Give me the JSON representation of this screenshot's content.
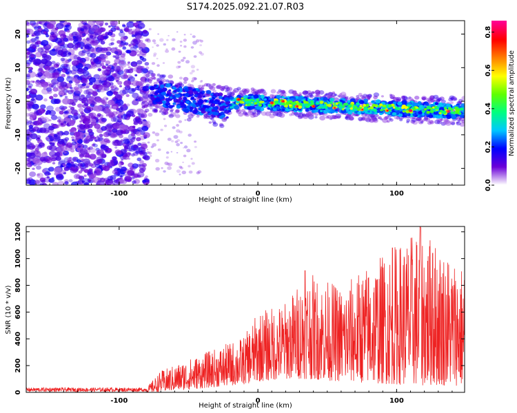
{
  "title": "S174.2025.092.21.07.R03",
  "chart_data": [
    {
      "type": "heatmap",
      "xlabel": "Height of straight line (km)",
      "ylabel": "Frequency (Hz)",
      "xlim": [
        -167,
        149
      ],
      "ylim": [
        -25,
        24
      ],
      "xticks": [
        -100,
        0,
        100
      ],
      "yticks": [
        -20,
        -10,
        0,
        10,
        20
      ],
      "colorbar": {
        "label": "Normalized spectral amplitude",
        "range": [
          0,
          0.86
        ],
        "ticks": [
          0.0,
          0.2,
          0.4,
          0.6,
          0.8
        ],
        "colormap": [
          "#ffffff",
          "#6a00d8",
          "#0000ff",
          "#00c8ff",
          "#00ff80",
          "#60ff00",
          "#ffff00",
          "#ff8000",
          "#ff0000",
          "#ff0090"
        ]
      },
      "description_regions": [
        {
          "x_range": [
            -167,
            -80
          ],
          "freq_range": [
            -25,
            24
          ],
          "amplitude": "low, broadband scatter"
        },
        {
          "x_range": [
            -80,
            -20
          ],
          "freq_center_start": 3,
          "freq_center_end": -2,
          "amplitude": "medium"
        },
        {
          "x_range": [
            -20,
            149
          ],
          "freq_center_start": 0,
          "freq_center_end": -3,
          "amplitude": "high, narrow band"
        }
      ]
    },
    {
      "type": "line",
      "xlabel": "Height of straight line (km)",
      "ylabel": "SNR (10 * v/v)",
      "xlim": [
        -167,
        149
      ],
      "ylim": [
        0,
        1240
      ],
      "xticks": [
        -100,
        0,
        100
      ],
      "yticks": [
        0,
        200,
        400,
        600,
        800,
        1000,
        1200
      ],
      "color": "#ee2222",
      "envelope": [
        {
          "x": -167,
          "low": 0,
          "high": 40
        },
        {
          "x": -80,
          "low": 0,
          "high": 40
        },
        {
          "x": -70,
          "low": 5,
          "high": 160
        },
        {
          "x": -50,
          "low": 20,
          "high": 250
        },
        {
          "x": -30,
          "low": 40,
          "high": 330
        },
        {
          "x": -10,
          "low": 60,
          "high": 420
        },
        {
          "x": 0,
          "low": 80,
          "high": 600
        },
        {
          "x": 20,
          "low": 100,
          "high": 680
        },
        {
          "x": 35,
          "low": 100,
          "high": 900
        },
        {
          "x": 60,
          "low": 80,
          "high": 800
        },
        {
          "x": 95,
          "low": 60,
          "high": 1080
        },
        {
          "x": 117,
          "low": 50,
          "high": 1235
        },
        {
          "x": 149,
          "low": 50,
          "high": 950
        }
      ],
      "peaks": [
        {
          "x": 34,
          "y": 910
        },
        {
          "x": 97,
          "y": 1080
        },
        {
          "x": 117,
          "y": 1235
        },
        {
          "x": 126,
          "y": 1040
        }
      ]
    }
  ]
}
